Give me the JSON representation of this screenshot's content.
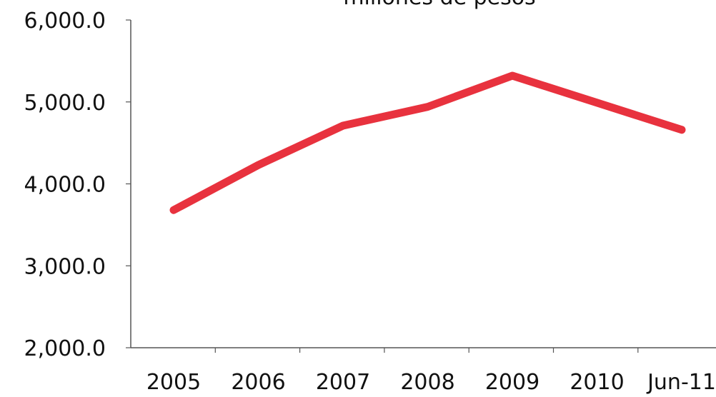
{
  "chart_data": {
    "type": "line",
    "title": "millones de pesos",
    "xlabel": "",
    "ylabel": "",
    "categories": [
      "2005",
      "2006",
      "2007",
      "2008",
      "2009",
      "2010",
      "Jun-11"
    ],
    "series": [
      {
        "values": [
          3680,
          4230,
          4710,
          4940,
          5320,
          4990,
          4660
        ]
      }
    ],
    "ylim": [
      2000,
      6000
    ],
    "ytick_values": [
      2000,
      3000,
      4000,
      5000,
      6000
    ],
    "ytick_labels": [
      "2,000.0",
      "3,000.0",
      "4,000.0",
      "5,000.0",
      "6,000.0"
    ],
    "grid": false,
    "legend": "none",
    "line_color": "#e8323e"
  }
}
